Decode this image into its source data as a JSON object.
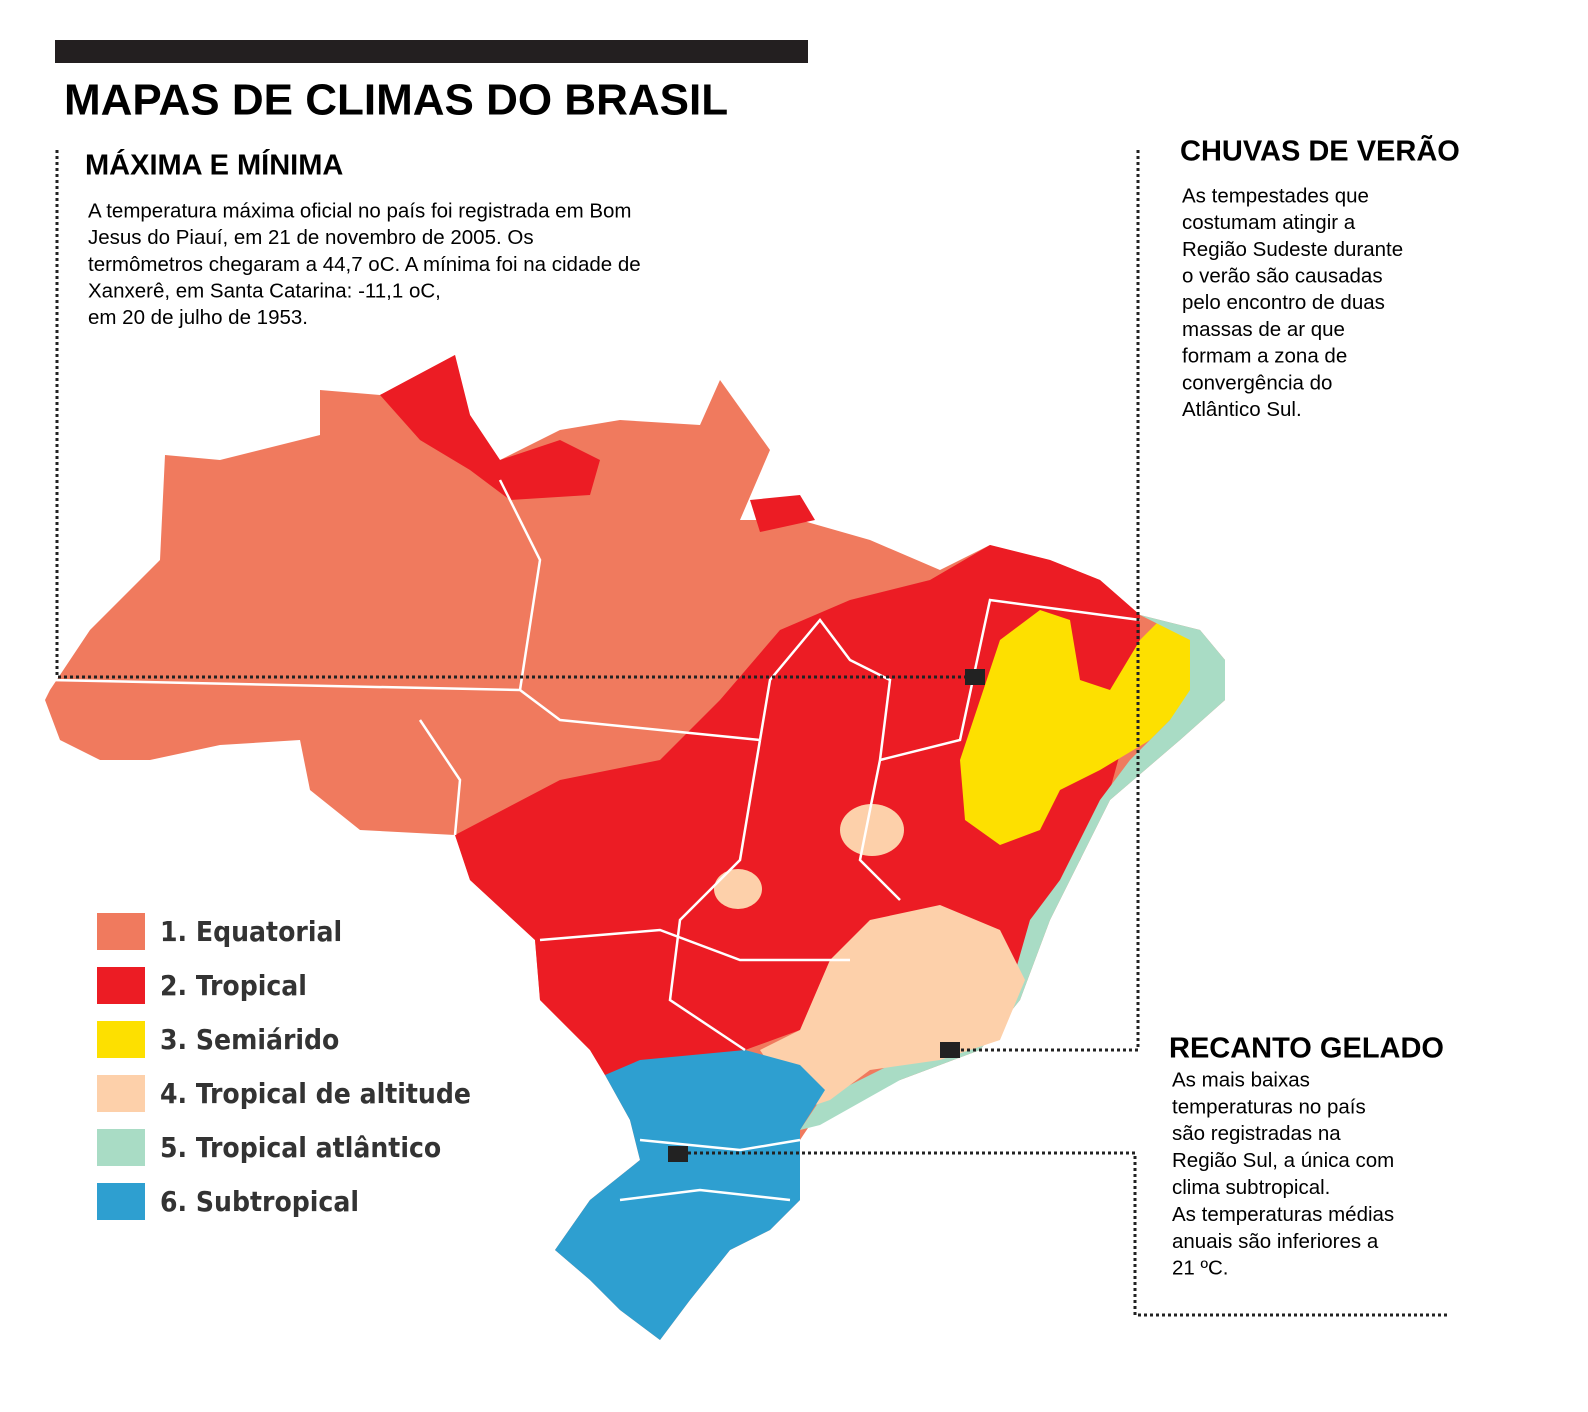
{
  "header": {
    "title": "MAPAS DE CLIMAS DO BRASIL"
  },
  "sections": [
    {
      "heading": "MÁXIMA E MÍNIMA",
      "lines": [
        "A temperatura máxima oficial no país foi registrada em Bom",
        "Jesus do Piauí, em 21 de novembro de 2005. Os",
        "termômetros chegaram a 44,7 oC. A mínima foi na cidade de",
        "Xanxerê, em Santa Catarina: -11,1 oC,",
        "em 20 de julho de 1953."
      ]
    },
    {
      "heading": "CHUVAS DE VERÃO",
      "lines": [
        "As tempestades que",
        "costumam atingir a",
        "Região Sudeste durante",
        "o verão são causadas",
        "pelo encontro de duas",
        "massas de ar que",
        "formam a zona de",
        "convergência do",
        "Atlântico Sul."
      ]
    },
    {
      "heading": "RECANTO GELADO",
      "lines": [
        "As mais baixas",
        "temperaturas no país",
        "são registradas na",
        "Região Sul, a única com",
        "clima subtropical.",
        "As temperaturas médias",
        "anuais são inferiores a",
        "21 ºC."
      ]
    }
  ],
  "legend": [
    {
      "label": "1. Equatorial",
      "color": "#f07a5e"
    },
    {
      "label": "2. Tropical",
      "color": "#ec1c24"
    },
    {
      "label": "3. Semiárido",
      "color": "#fde000"
    },
    {
      "label": "4. Tropical de altitude",
      "color": "#fdd0aa"
    },
    {
      "label": "5. Tropical atlântico",
      "color": "#a9dcc5"
    },
    {
      "label": "6. Subtropical",
      "color": "#2e9fd0"
    }
  ]
}
